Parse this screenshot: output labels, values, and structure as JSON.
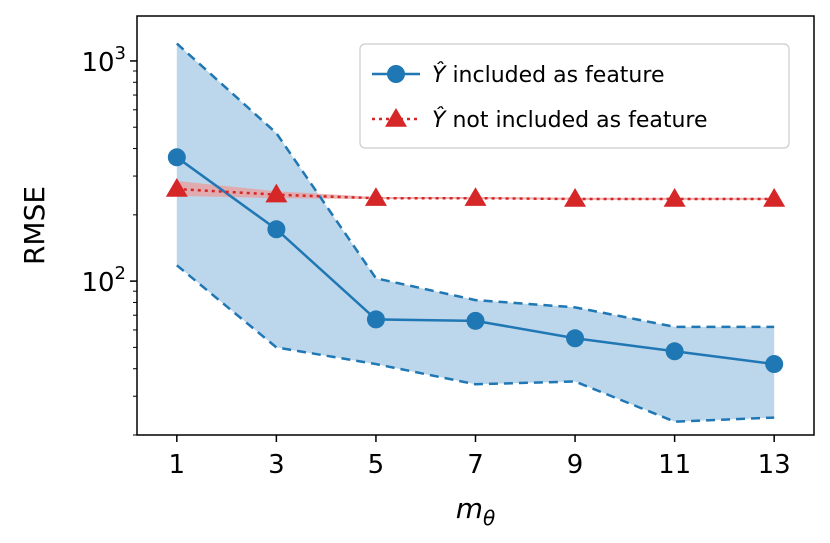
{
  "chart_data": {
    "type": "line",
    "title": "",
    "xlabel": "m_θ",
    "xlabel_main": "m",
    "xlabel_sub": "θ",
    "ylabel": "RMSE",
    "yscale": "log",
    "xlim": [
      0.2,
      13.8
    ],
    "ylim": [
      20,
      1600
    ],
    "x": [
      1,
      3,
      5,
      7,
      9,
      11,
      13
    ],
    "x_tick_labels": [
      "1",
      "3",
      "5",
      "7",
      "9",
      "11",
      "13"
    ],
    "y_major_ticks": [
      {
        "value": 100,
        "base": "10",
        "exp": "2"
      },
      {
        "value": 1000,
        "base": "10",
        "exp": "3"
      }
    ],
    "legend_position": "top-right",
    "grid": false,
    "series": [
      {
        "name": "Ŷ included as feature",
        "legend_var": "Ŷ",
        "legend_rest": " included as feature",
        "marker": "circle",
        "line_style": "solid",
        "color": "#1f77b4",
        "band_color": "#a6c8e4",
        "values": [
          365,
          172,
          67,
          66,
          55,
          48,
          42
        ],
        "band_upper": [
          1200,
          470,
          103,
          82,
          76,
          62,
          62
        ],
        "band_lower": [
          118,
          50,
          42,
          34,
          35,
          23,
          24
        ]
      },
      {
        "name": "Ŷ not included as feature",
        "legend_var": "Ŷ",
        "legend_rest": " not included as feature",
        "marker": "triangle",
        "line_style": "dotted",
        "color": "#d62728",
        "band_color": "#e8a0a0",
        "values": [
          262,
          247,
          238,
          238,
          236,
          236,
          236
        ],
        "band_upper": [
          285,
          256,
          241,
          241,
          239,
          239,
          239
        ],
        "band_lower": [
          244,
          238,
          236,
          236,
          234,
          234,
          234
        ]
      }
    ]
  }
}
